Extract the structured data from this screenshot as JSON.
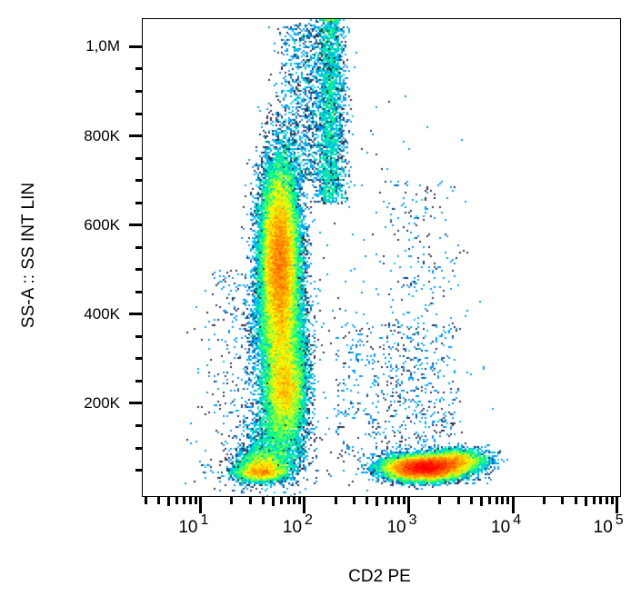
{
  "chart_data": {
    "type": "scatter",
    "subtype": "density-dot-plot",
    "xlabel": "CD2 PE",
    "ylabel": "SS-A :: SS INT LIN",
    "x_scale": "log",
    "xlim": [
      2.8,
      107000
    ],
    "ylim": [
      -8000,
      1062000
    ],
    "x_ticks": [
      {
        "base": "10",
        "exp": "1"
      },
      {
        "base": "10",
        "exp": "2"
      },
      {
        "base": "10",
        "exp": "3"
      },
      {
        "base": "10",
        "exp": "4"
      },
      {
        "base": "10",
        "exp": "5"
      }
    ],
    "y_ticks": [
      "1,0M",
      "800K",
      "600K",
      "400K",
      "200K"
    ],
    "y_tick_values": [
      1000000,
      800000,
      600000,
      400000,
      200000
    ],
    "colormap": [
      "#0000ff",
      "#00c0ff",
      "#00ff80",
      "#ffff00",
      "#ff8000",
      "#ff0000"
    ],
    "populations": [
      {
        "cd2_center": 60,
        "ss_center": 520000,
        "ss_spread": 110000,
        "density": "high"
      },
      {
        "cd2_center": 65,
        "ss_center": 230000,
        "ss_spread": 50000,
        "density": "medium"
      },
      {
        "cd2_center": 40,
        "ss_center": 50000,
        "ss_spread": 15000,
        "density": "medium"
      },
      {
        "cd2_center": 1400,
        "ss_center": 60000,
        "ss_spread": 15000,
        "density": "high"
      },
      {
        "cd2_center": 180,
        "ss_range": [
          700000,
          1050000
        ],
        "density": "low"
      },
      {
        "cd2_center": 1500,
        "ss_range": [
          100000,
          800000
        ],
        "density": "sparse"
      }
    ]
  }
}
